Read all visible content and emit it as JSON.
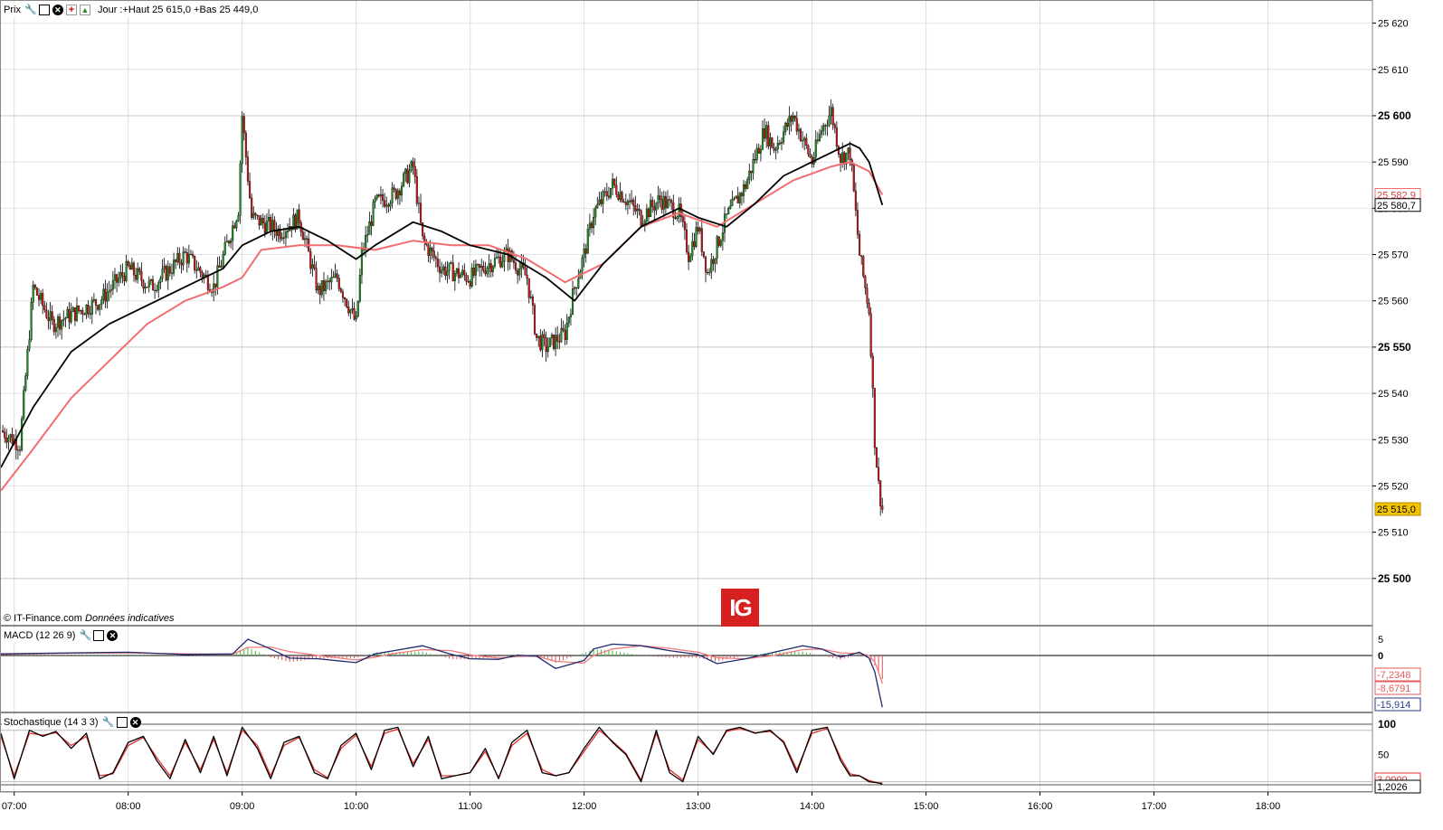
{
  "header": {
    "price_label": "Prix",
    "range_text": "Jour :+Haut 25 615,0 +Bas 25 449,0"
  },
  "credit": {
    "source": "© IT-Finance.com",
    "note": "Données indicatives"
  },
  "logo_text": "IG",
  "macd": {
    "label": "MACD (12 26 9)",
    "ticks": [
      "5",
      "0"
    ],
    "values": [
      "-7,2348",
      "-8,6791",
      "-15,914"
    ],
    "value_colors": [
      "#e35a5a",
      "#e35a5a",
      "#2a3a8a"
    ]
  },
  "stoch": {
    "label": "Stochastique (14 3 3)",
    "ticks": [
      "100",
      "50"
    ],
    "values": [
      "3,0000",
      "1,2026"
    ]
  },
  "price_axis": {
    "ticks": [
      "25 620",
      "25 610",
      "25 600",
      "25 590",
      "25 580",
      "25 570",
      "25 560",
      "25 550",
      "25 540",
      "25 530",
      "25 520",
      "25 510",
      "25 500"
    ],
    "bold_ticks": [
      "25 600",
      "25 550",
      "25 500"
    ],
    "markers": [
      {
        "value": 25582.9,
        "text": "25 582,9",
        "style": "red"
      },
      {
        "value": 25580.7,
        "text": "25 580,7",
        "style": "black"
      },
      {
        "value": 25515.0,
        "text": "25 515,0",
        "style": "yellow"
      }
    ]
  },
  "time_axis": {
    "labels": [
      "07:00",
      "08:00",
      "09:00",
      "10:00",
      "11:00",
      "12:00",
      "13:00",
      "14:00",
      "15:00",
      "16:00",
      "17:00",
      "18:00"
    ]
  },
  "colors": {
    "up_candle": "#1f8a1f",
    "down_candle": "#c01818",
    "ma_fast": "#000000",
    "ma_slow": "#f26d6d",
    "macd_line": "#1f2a6e",
    "signal_line": "#f07b7b",
    "hist_pos": "#3cbc3c",
    "hist_neg": "#e05050",
    "stoch_k": "#000000",
    "stoch_d": "#e03030",
    "grid": "#dddddd",
    "marker_yellow": "#f5c400"
  },
  "chart_data": [
    {
      "type": "line",
      "title": "",
      "subtitle": "Jour :+Haut 25 615,0 +Bas 25 449,0",
      "xlabel": "",
      "ylabel": "",
      "x_labels": [
        "07:00",
        "08:00",
        "09:00",
        "10:00",
        "11:00",
        "12:00",
        "13:00",
        "14:00",
        "15:00",
        "16:00",
        "17:00",
        "18:00"
      ],
      "xlim": [
        "06:53",
        "18:55"
      ],
      "ylim": [
        25490,
        25625
      ],
      "grid": true,
      "close_anchors": {
        "x": [
          "06:53",
          "07:03",
          "07:10",
          "07:20",
          "07:35",
          "07:45",
          "08:00",
          "08:12",
          "08:30",
          "08:45",
          "08:58",
          "09:00",
          "09:05",
          "09:20",
          "09:30",
          "09:40",
          "09:50",
          "10:00",
          "10:03",
          "10:10",
          "10:20",
          "10:30",
          "10:35",
          "10:45",
          "11:00",
          "11:10",
          "11:20",
          "11:30",
          "11:35",
          "11:40",
          "11:50",
          "11:55",
          "12:00",
          "12:05",
          "12:15",
          "12:20",
          "12:30",
          "12:40",
          "12:50",
          "12:55",
          "13:00",
          "13:05",
          "13:15",
          "13:25",
          "13:35",
          "13:40",
          "13:50",
          "14:00",
          "14:05",
          "14:10",
          "14:15",
          "14:20",
          "14:25",
          "14:30",
          "14:31",
          "14:33",
          "14:35",
          "14:37"
        ],
        "close": [
          25532,
          25529,
          25563,
          25555,
          25558,
          25560,
          25567,
          25563,
          25570,
          25563,
          25580,
          25600,
          25578,
          25575,
          25578,
          25562,
          25565,
          25555,
          25570,
          25581,
          25583,
          25589,
          25573,
          25567,
          25565,
          25568,
          25570,
          25565,
          25552,
          25550,
          25553,
          25563,
          25570,
          25579,
          25585,
          25583,
          25578,
          25582,
          25579,
          25570,
          25576,
          25566,
          25578,
          25585,
          25597,
          25593,
          25600,
          25590,
          25597,
          25601,
          25591,
          25592,
          25570,
          25558,
          25550,
          25530,
          25520,
          25515
        ]
      },
      "series": [
        {
          "type": "line",
          "x": [
            "06:53",
            "07:10",
            "07:30",
            "07:50",
            "08:10",
            "08:30",
            "08:50",
            "09:00",
            "09:15",
            "09:30",
            "09:45",
            "10:00",
            "10:10",
            "10:30",
            "10:45",
            "11:00",
            "11:20",
            "11:40",
            "11:55",
            "12:10",
            "12:30",
            "12:50",
            "13:00",
            "13:15",
            "13:30",
            "13:45",
            "14:00",
            "14:15",
            "14:20",
            "14:25",
            "14:30",
            "14:37"
          ],
          "values": [
            25524,
            25537,
            25549,
            25555,
            25559,
            25563,
            25567,
            25572,
            25575,
            25576,
            25573,
            25569,
            25572,
            25577,
            25575,
            25572,
            25570,
            25565,
            25560,
            25568,
            25576,
            25580,
            25578,
            25576,
            25581,
            25587,
            25590,
            25593,
            25594,
            25593,
            25590,
            25580.7
          ]
        },
        {
          "type": "line",
          "x": [
            "06:53",
            "07:10",
            "07:30",
            "07:50",
            "08:10",
            "08:30",
            "08:50",
            "09:00",
            "09:10",
            "09:30",
            "09:50",
            "10:10",
            "10:30",
            "10:50",
            "11:10",
            "11:30",
            "11:50",
            "12:10",
            "12:30",
            "12:50",
            "13:10",
            "13:30",
            "13:50",
            "14:10",
            "14:20",
            "14:25",
            "14:30",
            "14:37"
          ],
          "values": [
            25519,
            25528,
            25539,
            25547,
            25555,
            25560,
            25563,
            25565,
            25571,
            25572,
            25572,
            25571,
            25573,
            25572,
            25572,
            25569,
            25564,
            25568,
            25576,
            25579,
            25576,
            25581,
            25586,
            25589,
            25590,
            25589,
            25588,
            25582.9
          ]
        }
      ]
    },
    {
      "type": "line",
      "title": "MACD (12 26 9)",
      "yticks": [
        5,
        0
      ],
      "series": [
        {
          "type": "line",
          "x": [
            "06:53",
            "07:30",
            "08:00",
            "08:30",
            "08:55",
            "09:03",
            "09:15",
            "09:25",
            "09:40",
            "10:00",
            "10:10",
            "10:20",
            "10:35",
            "10:50",
            "11:00",
            "11:15",
            "11:25",
            "11:35",
            "11:45",
            "12:00",
            "12:05",
            "12:15",
            "12:30",
            "12:45",
            "13:00",
            "13:10",
            "13:25",
            "13:40",
            "13:55",
            "14:05",
            "14:15",
            "14:25",
            "14:30",
            "14:33",
            "14:35",
            "14:37"
          ],
          "values": [
            0.5,
            0.8,
            1.0,
            0.3,
            0.5,
            5.0,
            2.0,
            -0.8,
            -1.0,
            -2.2,
            0.5,
            1.5,
            3.0,
            0.4,
            -1.0,
            -1.2,
            0.1,
            -0.2,
            -4.0,
            -1.5,
            2.0,
            3.5,
            3.0,
            1.5,
            0.3,
            -2.5,
            -1.0,
            1.0,
            3.0,
            2.0,
            -0.5,
            1.0,
            -0.8,
            -5.0,
            -10.5,
            -15.914
          ]
        },
        {
          "type": "line",
          "x": [
            "06:53",
            "07:30",
            "08:00",
            "08:30",
            "08:55",
            "09:03",
            "09:15",
            "09:25",
            "09:40",
            "10:00",
            "10:10",
            "10:20",
            "10:35",
            "10:50",
            "11:00",
            "11:15",
            "11:25",
            "11:35",
            "11:45",
            "12:00",
            "12:05",
            "12:15",
            "12:30",
            "12:45",
            "13:00",
            "13:10",
            "13:25",
            "13:40",
            "13:55",
            "14:05",
            "14:15",
            "14:25",
            "14:30",
            "14:33",
            "14:35",
            "14:37"
          ],
          "values": [
            0.3,
            0.7,
            0.8,
            0.5,
            0.4,
            2.5,
            2.6,
            1.2,
            0.0,
            -1.4,
            -0.5,
            0.6,
            1.8,
            1.5,
            0.2,
            -0.8,
            -0.3,
            -0.2,
            -1.8,
            -2.3,
            0.0,
            2.0,
            3.0,
            2.2,
            1.0,
            -0.7,
            -1.0,
            0.0,
            1.8,
            2.0,
            0.8,
            0.6,
            0.0,
            -2.0,
            -5.0,
            -8.6791
          ]
        }
      ],
      "latest": [
        -7.2348,
        -8.6791,
        -15.914
      ]
    },
    {
      "type": "line",
      "title": "Stochastique (14 3 3)",
      "ylim": [
        0,
        100
      ],
      "yticks": [
        100,
        50
      ],
      "series": [
        {
          "type": "line",
          "x": [
            "06:53",
            "07:00",
            "07:08",
            "07:15",
            "07:22",
            "07:30",
            "07:38",
            "07:45",
            "07:52",
            "08:00",
            "08:08",
            "08:15",
            "08:22",
            "08:30",
            "08:38",
            "08:45",
            "08:52",
            "09:00",
            "09:08",
            "09:15",
            "09:22",
            "09:30",
            "09:38",
            "09:45",
            "09:52",
            "10:00",
            "10:08",
            "10:15",
            "10:22",
            "10:30",
            "10:38",
            "10:45",
            "10:52",
            "11:00",
            "11:08",
            "11:15",
            "11:22",
            "11:30",
            "11:38",
            "11:45",
            "11:52",
            "12:00",
            "12:08",
            "12:15",
            "12:22",
            "12:30",
            "12:38",
            "12:45",
            "12:52",
            "13:00",
            "13:08",
            "13:15",
            "13:22",
            "13:30",
            "13:38",
            "13:45",
            "13:52",
            "14:00",
            "14:08",
            "14:15",
            "14:20",
            "14:25",
            "14:30",
            "14:35",
            "14:37"
          ],
          "values": [
            85,
            10,
            90,
            80,
            88,
            60,
            85,
            10,
            20,
            70,
            80,
            40,
            10,
            75,
            20,
            80,
            15,
            95,
            60,
            10,
            70,
            80,
            20,
            10,
            65,
            85,
            25,
            90,
            95,
            30,
            80,
            10,
            15,
            20,
            60,
            10,
            70,
            90,
            20,
            15,
            20,
            60,
            95,
            70,
            50,
            5,
            90,
            20,
            5,
            80,
            50,
            90,
            95,
            85,
            90,
            70,
            20,
            90,
            95,
            40,
            15,
            15,
            5,
            3,
            1.2026
          ]
        },
        {
          "type": "line",
          "x": [
            "06:53",
            "07:00",
            "07:08",
            "07:15",
            "07:22",
            "07:30",
            "07:38",
            "07:45",
            "07:52",
            "08:00",
            "08:08",
            "08:15",
            "08:22",
            "08:30",
            "08:38",
            "08:45",
            "08:52",
            "09:00",
            "09:08",
            "09:15",
            "09:22",
            "09:30",
            "09:38",
            "09:45",
            "09:52",
            "10:00",
            "10:08",
            "10:15",
            "10:22",
            "10:30",
            "10:38",
            "10:45",
            "10:52",
            "11:00",
            "11:08",
            "11:15",
            "11:22",
            "11:30",
            "11:38",
            "11:45",
            "11:52",
            "12:00",
            "12:08",
            "12:15",
            "12:22",
            "12:30",
            "12:38",
            "12:45",
            "12:52",
            "13:00",
            "13:08",
            "13:15",
            "13:22",
            "13:30",
            "13:38",
            "13:45",
            "13:52",
            "14:00",
            "14:08",
            "14:15",
            "14:20",
            "14:25",
            "14:30",
            "14:35",
            "14:37"
          ],
          "values": [
            80,
            15,
            85,
            82,
            86,
            65,
            80,
            15,
            18,
            65,
            78,
            45,
            15,
            70,
            25,
            75,
            20,
            90,
            65,
            15,
            65,
            78,
            25,
            12,
            60,
            82,
            30,
            85,
            92,
            35,
            75,
            15,
            15,
            20,
            55,
            12,
            65,
            85,
            25,
            15,
            20,
            55,
            90,
            72,
            52,
            8,
            85,
            25,
            8,
            75,
            52,
            88,
            93,
            86,
            88,
            72,
            25,
            85,
            93,
            45,
            18,
            15,
            7,
            3,
            3.0
          ]
        }
      ],
      "latest": [
        3.0,
        1.2026
      ]
    }
  ]
}
